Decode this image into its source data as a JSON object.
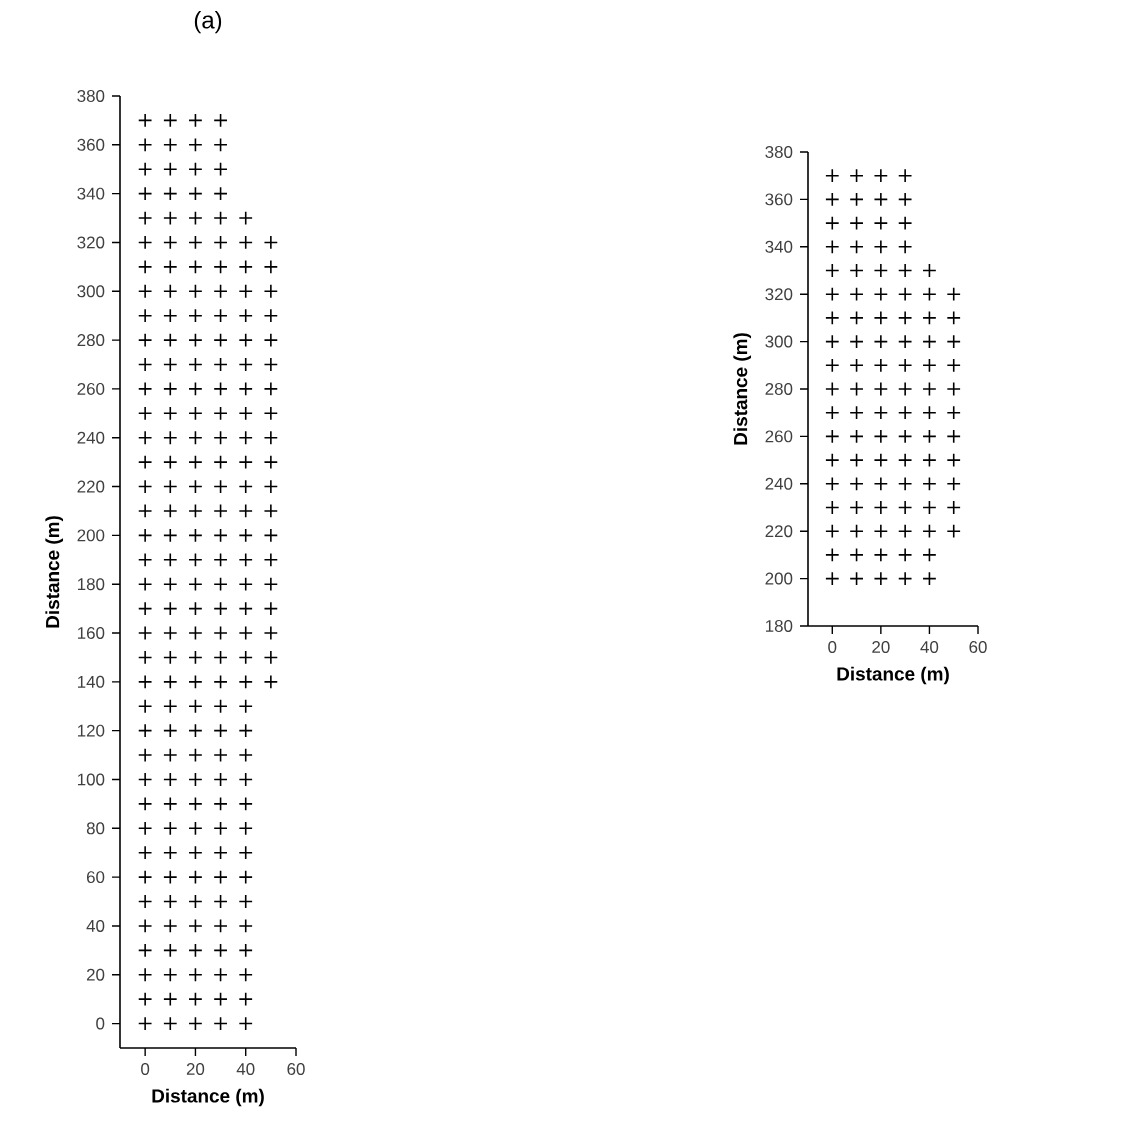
{
  "chart_data": [
    {
      "type": "scatter",
      "title": "(a)",
      "xlabel": "Distance (m)",
      "ylabel": "Distance (m)",
      "marker": "cross",
      "xlim": [
        -10,
        60
      ],
      "xticks": [
        0,
        20,
        40,
        60
      ],
      "ylim": [
        -10,
        380
      ],
      "yticks": [
        0,
        20,
        40,
        60,
        80,
        100,
        120,
        140,
        160,
        180,
        200,
        220,
        240,
        260,
        280,
        300,
        320,
        340,
        360,
        380
      ],
      "series": [
        {
          "color": "#000000",
          "x": [
            0,
            0,
            0,
            0,
            0,
            0,
            0,
            0,
            0,
            0,
            0,
            0,
            0,
            0,
            0,
            0,
            0,
            0,
            0,
            0,
            0,
            0,
            0,
            0,
            0,
            0,
            0,
            0,
            0,
            0,
            0,
            0,
            0,
            0,
            0,
            0,
            0,
            0
          ],
          "values": [
            0,
            10,
            20,
            30,
            40,
            50,
            60,
            70,
            80,
            90,
            100,
            110,
            120,
            130,
            140,
            150,
            160,
            170,
            180,
            190,
            200,
            210,
            220,
            230,
            240,
            250,
            260,
            270,
            280,
            290,
            300,
            310,
            320,
            330,
            340,
            350,
            360,
            370
          ]
        },
        {
          "color": "#000000",
          "x": [
            10,
            10,
            10,
            10,
            10,
            10,
            10,
            10,
            10,
            10,
            10,
            10,
            10,
            10,
            10,
            10,
            10,
            10,
            10,
            10,
            10,
            10,
            10,
            10,
            10,
            10,
            10,
            10,
            10,
            10,
            10,
            10,
            10,
            10,
            10,
            10,
            10,
            10
          ],
          "values": [
            0,
            10,
            20,
            30,
            40,
            50,
            60,
            70,
            80,
            90,
            100,
            110,
            120,
            130,
            140,
            150,
            160,
            170,
            180,
            190,
            200,
            210,
            220,
            230,
            240,
            250,
            260,
            270,
            280,
            290,
            300,
            310,
            320,
            330,
            340,
            350,
            360,
            370
          ]
        },
        {
          "color": "#000000",
          "x": [
            20,
            20,
            20,
            20,
            20,
            20,
            20,
            20,
            20,
            20,
            20,
            20,
            20,
            20,
            20,
            20,
            20,
            20,
            20,
            20,
            20,
            20,
            20,
            20,
            20,
            20,
            20,
            20,
            20,
            20,
            20,
            20,
            20,
            20,
            20,
            20,
            20,
            20
          ],
          "values": [
            0,
            10,
            20,
            30,
            40,
            50,
            60,
            70,
            80,
            90,
            100,
            110,
            120,
            130,
            140,
            150,
            160,
            170,
            180,
            190,
            200,
            210,
            220,
            230,
            240,
            250,
            260,
            270,
            280,
            290,
            300,
            310,
            320,
            330,
            340,
            350,
            360,
            370
          ]
        },
        {
          "color": "#000000",
          "x": [
            30,
            30,
            30,
            30,
            30,
            30,
            30,
            30,
            30,
            30,
            30,
            30,
            30,
            30,
            30,
            30,
            30,
            30,
            30,
            30,
            30,
            30,
            30,
            30,
            30,
            30,
            30,
            30,
            30,
            30,
            30,
            30,
            30,
            30,
            30,
            30,
            30,
            30
          ],
          "values": [
            0,
            10,
            20,
            30,
            40,
            50,
            60,
            70,
            80,
            90,
            100,
            110,
            120,
            130,
            140,
            150,
            160,
            170,
            180,
            190,
            200,
            210,
            220,
            230,
            240,
            250,
            260,
            270,
            280,
            290,
            300,
            310,
            320,
            330,
            340,
            350,
            360,
            370
          ]
        },
        {
          "color": "#000000",
          "x": [
            40,
            40,
            40,
            40,
            40,
            40,
            40,
            40,
            40,
            40,
            40,
            40,
            40,
            40,
            40,
            40,
            40,
            40,
            40,
            40,
            40,
            40,
            40,
            40,
            40,
            40,
            40,
            40,
            40,
            40,
            40,
            40,
            40,
            40
          ],
          "values": [
            0,
            10,
            20,
            30,
            40,
            50,
            60,
            70,
            80,
            90,
            100,
            110,
            120,
            130,
            140,
            150,
            160,
            170,
            180,
            190,
            200,
            210,
            220,
            230,
            240,
            250,
            260,
            270,
            280,
            290,
            300,
            310,
            320,
            330
          ]
        },
        {
          "color": "#000000",
          "x": [
            50,
            50,
            50,
            50,
            50,
            50,
            50,
            50,
            50,
            50,
            50,
            50,
            50,
            50,
            50,
            50,
            50,
            50,
            50
          ],
          "values": [
            140,
            150,
            160,
            170,
            180,
            190,
            200,
            210,
            220,
            230,
            240,
            250,
            260,
            270,
            280,
            290,
            300,
            310,
            320
          ]
        }
      ]
    },
    {
      "type": "scatter",
      "xlabel": "Distance (m)",
      "ylabel": "Distance (m)",
      "marker": "cross",
      "xlim": [
        -10,
        60
      ],
      "xticks": [
        0,
        20,
        40,
        60
      ],
      "ylim": [
        180,
        380
      ],
      "yticks": [
        180,
        200,
        220,
        240,
        260,
        280,
        300,
        320,
        340,
        360,
        380
      ],
      "series": [
        {
          "color": "#000000",
          "x": [
            0,
            0,
            0,
            0,
            0,
            0,
            0,
            0,
            0,
            0,
            0,
            0,
            0,
            0,
            0,
            0,
            0,
            0
          ],
          "values": [
            200,
            210,
            220,
            230,
            240,
            250,
            260,
            270,
            280,
            290,
            300,
            310,
            320,
            330,
            340,
            350,
            360,
            370
          ]
        },
        {
          "color": "#000000",
          "x": [
            10,
            10,
            10,
            10,
            10,
            10,
            10,
            10,
            10,
            10,
            10,
            10,
            10,
            10,
            10,
            10,
            10,
            10
          ],
          "values": [
            200,
            210,
            220,
            230,
            240,
            250,
            260,
            270,
            280,
            290,
            300,
            310,
            320,
            330,
            340,
            350,
            360,
            370
          ]
        },
        {
          "color": "#000000",
          "x": [
            20,
            20,
            20,
            20,
            20,
            20,
            20,
            20,
            20,
            20,
            20,
            20,
            20,
            20,
            20,
            20,
            20,
            20
          ],
          "values": [
            200,
            210,
            220,
            230,
            240,
            250,
            260,
            270,
            280,
            290,
            300,
            310,
            320,
            330,
            340,
            350,
            360,
            370
          ]
        },
        {
          "color": "#000000",
          "x": [
            30,
            30,
            30,
            30,
            30,
            30,
            30,
            30,
            30,
            30,
            30,
            30,
            30,
            30,
            30,
            30,
            30,
            30
          ],
          "values": [
            200,
            210,
            220,
            230,
            240,
            250,
            260,
            270,
            280,
            290,
            300,
            310,
            320,
            330,
            340,
            350,
            360,
            370
          ]
        },
        {
          "color": "#000000",
          "x": [
            40,
            40,
            40,
            40,
            40,
            40,
            40,
            40,
            40,
            40,
            40,
            40,
            40,
            40
          ],
          "values": [
            200,
            210,
            220,
            230,
            240,
            250,
            260,
            270,
            280,
            290,
            300,
            310,
            320,
            330
          ]
        },
        {
          "color": "#000000",
          "x": [
            50,
            50,
            50,
            50,
            50,
            50,
            50,
            50,
            50,
            50,
            50
          ],
          "values": [
            220,
            230,
            240,
            250,
            260,
            270,
            280,
            290,
            300,
            310,
            320
          ]
        }
      ]
    }
  ]
}
